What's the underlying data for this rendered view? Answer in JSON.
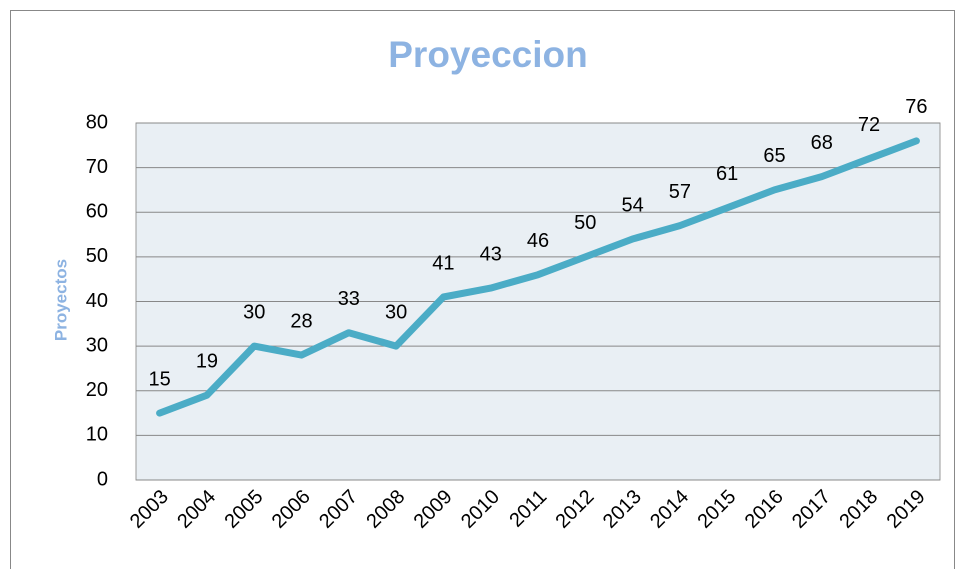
{
  "chart_data": {
    "type": "line",
    "title": "Proyeccion",
    "y_label": "Proyectos",
    "categories": [
      "2003",
      "2004",
      "2005",
      "2006",
      "2007",
      "2008",
      "2009",
      "2010",
      "2011",
      "2012",
      "2013",
      "2014",
      "2015",
      "2016",
      "2017",
      "2018",
      "2019"
    ],
    "values": [
      15,
      19,
      30,
      28,
      33,
      30,
      41,
      43,
      46,
      50,
      54,
      57,
      61,
      65,
      68,
      72,
      76
    ],
    "color": "#4bacc6",
    "ylim": [
      0,
      80
    ],
    "yticks": [
      0,
      10,
      20,
      30,
      40,
      50,
      60,
      70,
      80
    ],
    "grid": true,
    "data_labels": true
  }
}
